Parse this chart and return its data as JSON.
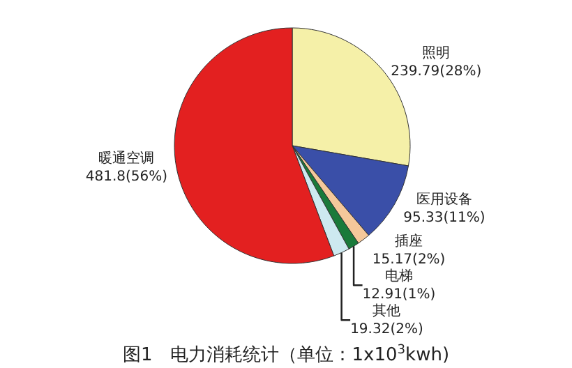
{
  "chart_data": {
    "type": "pie",
    "title": "图1　电力消耗统计（单位：1x10$^{3}$kwh)",
    "categories": [
      "照明",
      "医用设备",
      "插座",
      "电梯",
      "其他",
      "暖通空调"
    ],
    "values": [
      239.79,
      95.33,
      15.17,
      12.91,
      19.32,
      481.8
    ],
    "value_labels": [
      "239.79(28%)",
      "95.33(11%)",
      "15.17(2%)",
      "12.91(1%)",
      "19.32(2%)",
      "481.8(56%)"
    ],
    "colors": [
      "#f5f0a8",
      "#3a4fa8",
      "#f5c89a",
      "#1a7a3a",
      "#cde9f0",
      "#e32020"
    ],
    "legend": false
  }
}
